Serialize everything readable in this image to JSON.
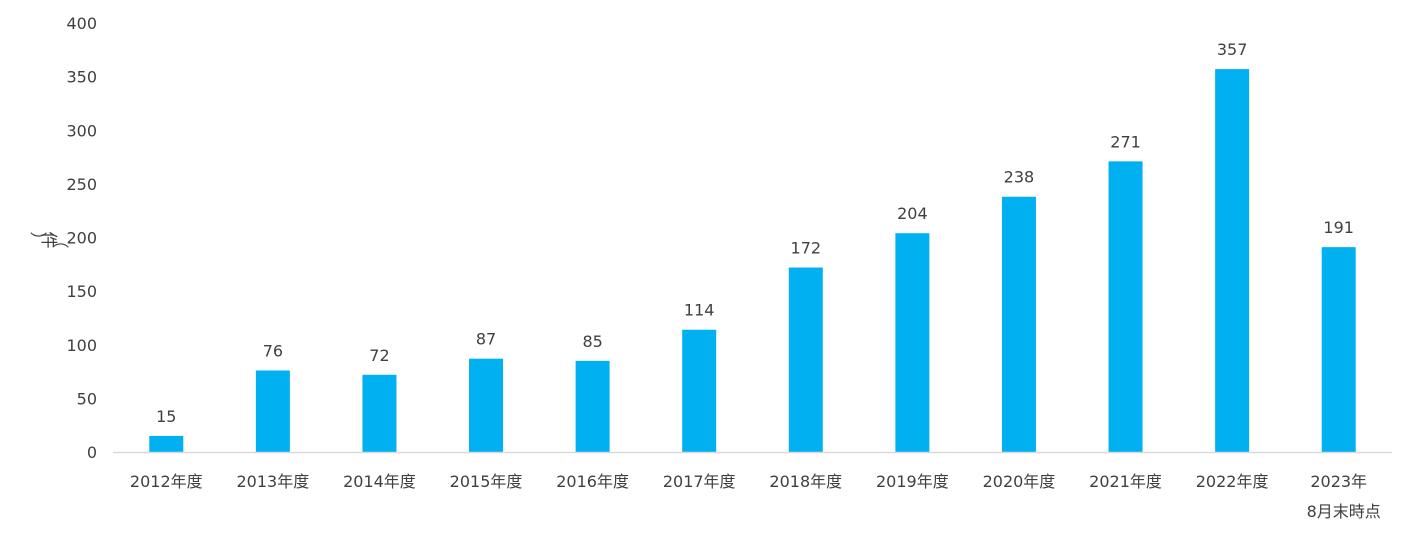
{
  "chart_data": {
    "type": "bar",
    "ylabel": "（件）",
    "ylim": [
      0,
      400
    ],
    "yticks": [
      0,
      50,
      100,
      150,
      200,
      250,
      300,
      350,
      400
    ],
    "grid": false,
    "categories": [
      [
        "2012年度"
      ],
      [
        "2013年度"
      ],
      [
        "2014年度"
      ],
      [
        "2015年度"
      ],
      [
        "2016年度"
      ],
      [
        "2017年度"
      ],
      [
        "2018年度"
      ],
      [
        "2019年度"
      ],
      [
        "2020年度"
      ],
      [
        "2021年度"
      ],
      [
        "2022年度"
      ],
      [
        "2023年",
        "8月末時点"
      ]
    ],
    "values": [
      15,
      76,
      72,
      87,
      85,
      114,
      172,
      204,
      238,
      271,
      357,
      191
    ],
    "colors": {
      "bar": "#00b0f0",
      "axis": "#d9d9d9",
      "text": "#404040"
    }
  }
}
